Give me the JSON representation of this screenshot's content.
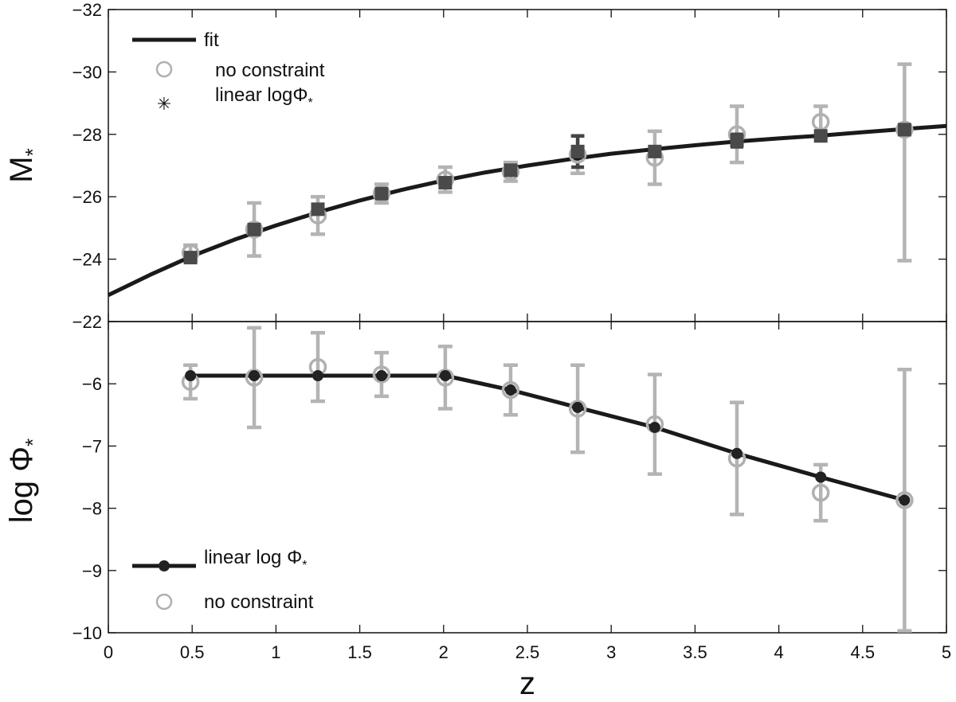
{
  "chart_data": [
    {
      "id": "top",
      "type": "scatter",
      "ylabel": "M*",
      "ylabel_main": "M",
      "ylabel_sub": "*",
      "xlim": [
        0,
        5
      ],
      "ylim": [
        -22,
        -32
      ],
      "yticks": [
        -32,
        -30,
        -28,
        -26,
        -24,
        -22
      ],
      "ytick_labels": [
        "−32",
        "−30",
        "−28",
        "−26",
        "−24",
        "−22"
      ],
      "legend": {
        "position": "top-left",
        "fit_label": "fit",
        "noconstraint_label": "no constraint",
        "linear_label": "linear logΦ*",
        "linear_label_main": "linear logΦ",
        "linear_label_sub": "*",
        "linear_symbol": "✳"
      },
      "fit": {
        "name": "fit",
        "x": [
          0,
          0.25,
          0.5,
          0.75,
          1,
          1.25,
          1.5,
          1.75,
          2,
          2.25,
          2.5,
          2.75,
          3,
          3.25,
          3.5,
          3.75,
          4,
          4.25,
          4.5,
          4.75,
          5
        ],
        "y": [
          -22.85,
          -23.5,
          -24.1,
          -24.62,
          -25.08,
          -25.5,
          -25.88,
          -26.22,
          -26.52,
          -26.78,
          -27.0,
          -27.2,
          -27.38,
          -27.52,
          -27.65,
          -27.77,
          -27.87,
          -27.96,
          -28.07,
          -28.17,
          -28.27
        ]
      },
      "series": [
        {
          "name": "no constraint",
          "marker": "open-circle",
          "color": "#aaaaaa",
          "x": [
            0.49,
            0.87,
            1.25,
            1.63,
            2.01,
            2.4,
            2.8,
            3.26,
            3.75,
            4.25,
            4.75
          ],
          "y": [
            -24.2,
            -24.95,
            -25.4,
            -26.1,
            -26.55,
            -26.8,
            -27.35,
            -27.25,
            -28.0,
            -28.4,
            -28.15
          ],
          "err_lo": [
            0.25,
            0.85,
            0.6,
            0.3,
            0.4,
            0.3,
            0.6,
            0.85,
            0.9,
            0.5,
            4.2
          ],
          "err_hi": [
            0.25,
            0.85,
            0.6,
            0.3,
            0.4,
            0.3,
            0.6,
            0.85,
            0.9,
            0.5,
            2.1
          ]
        },
        {
          "name": "linear logΦ*",
          "marker": "filled-square",
          "color": "#4a4a4a",
          "x": [
            0.49,
            0.87,
            1.25,
            1.63,
            2.01,
            2.4,
            2.8,
            3.26,
            3.75,
            4.25,
            4.75
          ],
          "y": [
            -24.05,
            -24.95,
            -25.6,
            -26.1,
            -26.45,
            -26.85,
            -27.45,
            -27.45,
            -27.8,
            -27.95,
            -28.15
          ],
          "err_lo": [
            0,
            0,
            0,
            0,
            0,
            0,
            0.5,
            0,
            0.2,
            0,
            0
          ],
          "err_hi": [
            0,
            0,
            0,
            0,
            0,
            0,
            0.5,
            0,
            0.2,
            0,
            0
          ]
        }
      ]
    },
    {
      "id": "bottom",
      "type": "scatter",
      "xlabel": "z",
      "ylabel": "log Φ*",
      "ylabel_main": "log Φ",
      "ylabel_sub": "*",
      "xlim": [
        0,
        5
      ],
      "ylim": [
        -10,
        -5
      ],
      "xticks": [
        0,
        0.5,
        1,
        1.5,
        2,
        2.5,
        3,
        3.5,
        4,
        4.5,
        5
      ],
      "xtick_labels": [
        "0",
        "0.5",
        "1",
        "1.5",
        "2",
        "2.5",
        "3",
        "3.5",
        "4",
        "4.5",
        "5"
      ],
      "yticks": [
        -10,
        -9,
        -8,
        -7,
        -6
      ],
      "ytick_labels": [
        "−10",
        "−9",
        "−8",
        "−7",
        "−6"
      ],
      "legend": {
        "position": "bottom-left",
        "linear_label": "linear log Φ*",
        "linear_label_main": "linear log Φ",
        "linear_label_sub": "*",
        "noconstraint_label": "no constraint"
      },
      "fit": {
        "name": "linear log Φ*",
        "x": [
          0.49,
          0.87,
          1.25,
          1.63,
          2.01,
          2.4,
          2.8,
          3.26,
          3.75,
          4.25,
          4.75
        ],
        "y": [
          -5.87,
          -5.87,
          -5.87,
          -5.87,
          -5.87,
          -6.1,
          -6.38,
          -6.7,
          -7.12,
          -7.5,
          -7.87
        ]
      },
      "series": [
        {
          "name": "no constraint",
          "marker": "open-circle",
          "color": "#aaaaaa",
          "x": [
            0.49,
            0.87,
            1.25,
            1.63,
            2.01,
            2.4,
            2.8,
            3.26,
            3.75,
            4.25,
            4.75
          ],
          "y": [
            -5.97,
            -5.9,
            -5.73,
            -5.85,
            -5.9,
            -6.1,
            -6.4,
            -6.65,
            -7.2,
            -7.75,
            -7.87
          ],
          "err_lo": [
            0.27,
            0.8,
            0.55,
            0.35,
            0.5,
            0.4,
            0.7,
            0.8,
            0.9,
            0.45,
            2.1
          ],
          "err_hi": [
            0.27,
            0.8,
            0.55,
            0.35,
            0.5,
            0.4,
            0.7,
            0.8,
            0.9,
            0.45,
            2.1
          ]
        },
        {
          "name": "linear log Φ*",
          "marker": "filled-circle",
          "color": "#222222",
          "x": [
            0.49,
            0.87,
            1.25,
            1.63,
            2.01,
            2.4,
            2.8,
            3.26,
            3.75,
            4.25,
            4.75
          ],
          "y": [
            -5.87,
            -5.87,
            -5.87,
            -5.87,
            -5.87,
            -6.1,
            -6.38,
            -6.7,
            -7.12,
            -7.5,
            -7.87
          ]
        }
      ]
    }
  ]
}
